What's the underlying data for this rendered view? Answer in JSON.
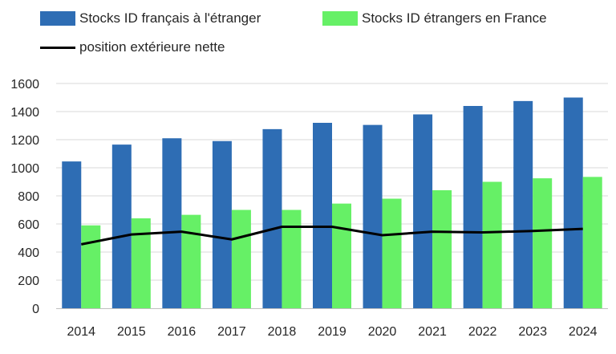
{
  "legend": {
    "series1": "Stocks ID français à l'étranger",
    "series2": "Stocks ID étrangers en France",
    "series3": "position extérieure nette"
  },
  "colors": {
    "series1": "#2E6DB4",
    "series2": "#66F066",
    "series3": "#000000",
    "grid": "#D9D9D9",
    "axis": "#BFBFBF"
  },
  "chart_data": {
    "type": "bar",
    "categories": [
      "2014",
      "2015",
      "2016",
      "2017",
      "2018",
      "2019",
      "2020",
      "2021",
      "2022",
      "2023",
      "2024"
    ],
    "series": [
      {
        "name": "Stocks ID français à l'étranger",
        "type": "bar",
        "values": [
          1045,
          1165,
          1210,
          1190,
          1275,
          1320,
          1305,
          1380,
          1440,
          1475,
          1500
        ]
      },
      {
        "name": "Stocks ID étrangers en France",
        "type": "bar",
        "values": [
          590,
          640,
          665,
          700,
          700,
          745,
          780,
          840,
          900,
          925,
          935
        ]
      },
      {
        "name": "position extérieure nette",
        "type": "line",
        "values": [
          455,
          525,
          545,
          490,
          580,
          580,
          520,
          545,
          540,
          550,
          565
        ]
      }
    ],
    "ylim": [
      0,
      1600
    ],
    "yticks": [
      0,
      200,
      400,
      600,
      800,
      1000,
      1200,
      1400,
      1600
    ],
    "grid": true,
    "legend_position": "top"
  }
}
